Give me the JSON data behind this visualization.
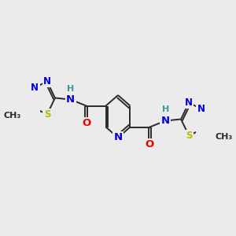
{
  "bg_color": "#ebebeb",
  "bond_color": "#2a2a2a",
  "bond_width": 1.4,
  "atom_colors": {
    "N": "#0000dd",
    "O": "#ee0000",
    "S": "#bbbb00",
    "C": "#2a2a2a",
    "H": "#3a9a9a"
  },
  "fs_main": 9.5,
  "fs_small": 8.0,
  "fs_methyl": 8.0
}
